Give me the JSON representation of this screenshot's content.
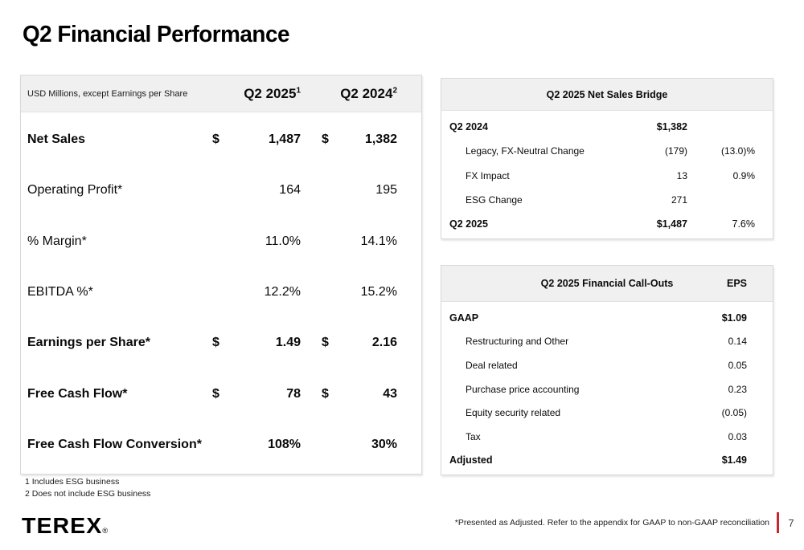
{
  "slide": {
    "title": "Q2 Financial Performance",
    "logo_text": "TEREX",
    "logo_reg": "®",
    "footer_note": "*Presented as Adjusted. Refer to the appendix for GAAP to non-GAAP reconciliation",
    "page_number": "7",
    "accent_color": "#c5282f",
    "header_bg_color": "#f0f0f0",
    "border_color": "#d9d9d9"
  },
  "financials_table": {
    "unit_note": "USD Millions, except Earnings per Share",
    "col1": "Q2 2025",
    "col1_sup": "1",
    "col2": "Q2 2024",
    "col2_sup": "2",
    "rows": [
      {
        "label": "Net Sales",
        "d1": "$",
        "v1": "1,487",
        "d2": "$",
        "v2": "1,382"
      },
      {
        "label": "Operating Profit*",
        "v1": "164",
        "v2": "195"
      },
      {
        "label": "% Margin*",
        "v1": "11.0%",
        "v2": "14.1%"
      },
      {
        "label": "EBITDA %*",
        "v1": "12.2%",
        "v2": "15.2%"
      },
      {
        "label": "Earnings per Share*",
        "d1": "$",
        "v1": "1.49",
        "d2": "$",
        "v2": "2.16"
      },
      {
        "label": "Free Cash Flow*",
        "d1": "$",
        "v1": "78",
        "d2": "$",
        "v2": "43"
      },
      {
        "label": "Free Cash Flow Conversion*",
        "v1": "108%",
        "v2": "30%"
      }
    ],
    "footnotes": [
      "1 Includes ESG business",
      "2 Does not include ESG business"
    ]
  },
  "bridge_table": {
    "title": "Q2 2025 Net Sales Bridge",
    "rows": [
      {
        "label": "Q2 2024",
        "value": "$1,382",
        "pct": ""
      },
      {
        "label": "Legacy, FX-Neutral Change",
        "value": "(179)",
        "pct": "(13.0)%"
      },
      {
        "label": "FX Impact",
        "value": "13",
        "pct": "0.9%"
      },
      {
        "label": "ESG Change",
        "value": "271",
        "pct": ""
      },
      {
        "label": "Q2 2025",
        "value": "$1,487",
        "pct": "7.6%"
      }
    ]
  },
  "callouts_table": {
    "title": "Q2 2025 Financial Call-Outs",
    "col_header": "EPS",
    "rows": [
      {
        "label": "GAAP",
        "value": "$1.09"
      },
      {
        "label": "Restructuring and Other",
        "value": "0.14"
      },
      {
        "label": "Deal related",
        "value": "0.05"
      },
      {
        "label": "Purchase price accounting",
        "value": "0.23"
      },
      {
        "label": "Equity security related",
        "value": "(0.05)"
      },
      {
        "label": "Tax",
        "value": "0.03"
      },
      {
        "label": "Adjusted",
        "value": "$1.49"
      }
    ]
  }
}
